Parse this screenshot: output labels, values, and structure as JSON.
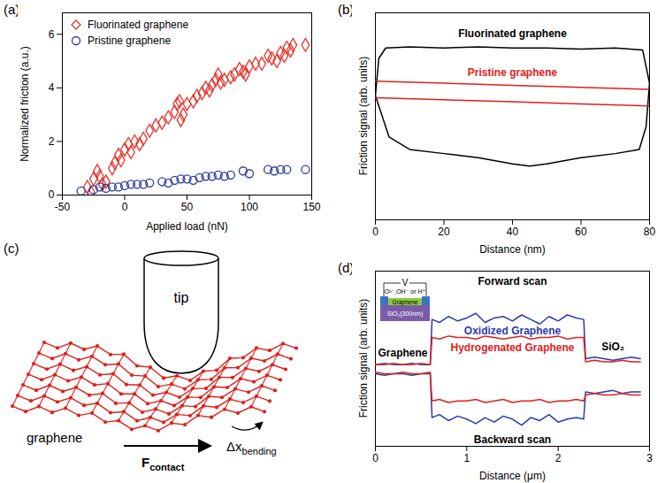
{
  "chart_data": [
    {
      "panel": "(a)",
      "type": "scatter",
      "x_label": "Applied load (nN)",
      "y_label": "Normalized friction (a.u.)",
      "xlim": [
        -50,
        150
      ],
      "xticks": [
        -50,
        0,
        50,
        100,
        150
      ],
      "ylim": [
        0,
        6.8
      ],
      "yticks": [
        0,
        2,
        4,
        6
      ],
      "legend": "top-left",
      "series": [
        {
          "name": "Fluorinated graphene",
          "color": "#e8332a",
          "marker": "diamond",
          "x": [
            -30,
            -27,
            -25,
            -22,
            -20,
            -18,
            -15,
            -10,
            -8,
            -5,
            -3,
            0,
            3,
            5,
            8,
            12,
            15,
            20,
            25,
            30,
            35,
            40,
            42,
            44,
            45,
            47,
            50,
            55,
            58,
            62,
            65,
            68,
            70,
            73,
            75,
            77,
            80,
            85,
            88,
            92,
            95,
            97,
            100,
            105,
            110,
            115,
            118,
            122,
            125,
            128,
            130,
            133,
            135,
            145
          ],
          "values": [
            0.3,
            0.1,
            0.6,
            0.9,
            0.7,
            0.4,
            0.5,
            1.0,
            1.2,
            1.5,
            1.3,
            1.7,
            1.9,
            1.6,
            2.0,
            1.9,
            2.1,
            2.4,
            2.6,
            2.7,
            2.9,
            3.1,
            3.4,
            3.5,
            2.8,
            3.0,
            3.4,
            3.5,
            3.7,
            3.8,
            4.0,
            3.9,
            4.1,
            4.3,
            4.5,
            4.2,
            4.3,
            4.4,
            4.5,
            4.7,
            4.6,
            4.5,
            4.8,
            4.9,
            4.9,
            5.2,
            5.1,
            5.0,
            5.3,
            5.2,
            5.5,
            5.4,
            5.6,
            5.6
          ]
        },
        {
          "name": "Pristine graphene",
          "color": "#2b3a9e",
          "marker": "circle",
          "x": [
            -35,
            -25,
            -20,
            -15,
            -10,
            -5,
            0,
            5,
            10,
            15,
            20,
            30,
            35,
            40,
            45,
            50,
            55,
            60,
            65,
            70,
            75,
            80,
            85,
            95,
            100,
            115,
            120,
            125,
            130,
            145
          ],
          "values": [
            0.15,
            0.2,
            0.3,
            0.25,
            0.3,
            0.3,
            0.35,
            0.4,
            0.4,
            0.4,
            0.45,
            0.5,
            0.45,
            0.55,
            0.6,
            0.6,
            0.55,
            0.65,
            0.7,
            0.7,
            0.75,
            0.7,
            0.75,
            0.9,
            0.8,
            0.95,
            0.9,
            0.95,
            0.95,
            0.95
          ]
        }
      ]
    },
    {
      "panel": "(b)",
      "type": "line",
      "x_label": "Distance (nm)",
      "y_label": "Friction signal (arb. units)",
      "xlim": [
        0,
        80
      ],
      "xticks": [
        0,
        20,
        40,
        60,
        80
      ],
      "ylim": [
        0,
        10
      ],
      "tick_labels": "x",
      "series": [
        {
          "name": "Fluorinated graphene",
          "color": "#000000",
          "label_x": 40,
          "label_y": 9.0,
          "forward": {
            "x": [
              0,
              1,
              3,
              10,
              20,
              30,
              40,
              50,
              60,
              70,
              78,
              80
            ],
            "values": [
              6.0,
              7.8,
              8.3,
              8.35,
              8.3,
              8.35,
              8.3,
              8.3,
              8.25,
              8.3,
              8.2,
              6.6
            ]
          },
          "backward": {
            "x": [
              80,
              79,
              77,
              70,
              60,
              50,
              45,
              40,
              30,
              20,
              10,
              4,
              2,
              0
            ],
            "values": [
              6.6,
              4.5,
              3.4,
              3.2,
              3.0,
              2.7,
              2.6,
              2.7,
              3.0,
              3.2,
              3.4,
              4.0,
              5.0,
              6.0
            ]
          }
        },
        {
          "name": "Pristine graphene",
          "color": "#e0201b",
          "label_x": 40,
          "label_y": 7.1,
          "forward": {
            "x": [
              0,
              20,
              40,
              60,
              80
            ],
            "values": [
              6.7,
              6.6,
              6.5,
              6.4,
              6.3
            ]
          },
          "backward": {
            "x": [
              80,
              60,
              40,
              20,
              0
            ],
            "values": [
              5.5,
              5.6,
              5.7,
              5.8,
              5.9
            ]
          }
        }
      ]
    },
    {
      "panel": "(d)",
      "type": "line",
      "x_label": "Distance (μm)",
      "y_label": "Friction signal (arb. units)",
      "xlim": [
        0,
        3
      ],
      "xticks": [
        0,
        1,
        2,
        3
      ],
      "ylim": [
        -0.6,
        11
      ],
      "tick_labels": "x",
      "x": [
        0,
        0.1,
        0.2,
        0.3,
        0.4,
        0.5,
        0.6,
        0.62,
        0.7,
        0.8,
        0.9,
        1.0,
        1.1,
        1.2,
        1.3,
        1.4,
        1.5,
        1.6,
        1.7,
        1.8,
        1.9,
        2.0,
        2.1,
        2.2,
        2.28,
        2.3,
        2.4,
        2.5,
        2.6,
        2.7,
        2.8,
        2.9
      ],
      "series": [
        {
          "name": "Oxidized Graphene",
          "color": "#2a3bb0",
          "label_x": 1.5,
          "label_y": 7.05,
          "forward": [
            4.8,
            4.9,
            4.8,
            4.8,
            4.9,
            4.8,
            4.8,
            7.8,
            7.6,
            8.0,
            7.7,
            7.9,
            8.2,
            7.6,
            7.9,
            8.0,
            7.7,
            8.1,
            7.8,
            7.5,
            8.0,
            7.7,
            8.1,
            7.9,
            7.8,
            5.2,
            5.3,
            5.2,
            5.1,
            5.2,
            5.3,
            5.2
          ],
          "backward": [
            4.2,
            4.1,
            4.2,
            4.2,
            4.1,
            4.2,
            4.2,
            1.3,
            1.5,
            1.1,
            1.4,
            1.2,
            0.9,
            1.3,
            1.0,
            1.4,
            1.2,
            0.8,
            1.3,
            1.1,
            1.5,
            1.0,
            1.2,
            1.3,
            1.2,
            3.0,
            2.9,
            3.0,
            3.1,
            2.9,
            3.0,
            3.0
          ]
        },
        {
          "name": "Hydrogenated Graphene",
          "color": "#e0201b",
          "label_x": 1.5,
          "label_y": 5.9,
          "forward": [
            4.8,
            4.8,
            4.9,
            4.8,
            4.8,
            4.9,
            4.8,
            6.6,
            6.5,
            6.7,
            6.6,
            6.6,
            6.5,
            6.7,
            6.6,
            6.5,
            6.6,
            6.7,
            6.5,
            6.6,
            6.6,
            6.7,
            6.5,
            6.6,
            6.6,
            5.0,
            5.1,
            5.0,
            5.0,
            5.1,
            5.0,
            5.0
          ],
          "backward": [
            4.3,
            4.2,
            4.2,
            4.3,
            4.2,
            4.2,
            4.3,
            2.4,
            2.5,
            2.3,
            2.4,
            2.4,
            2.5,
            2.3,
            2.4,
            2.5,
            2.3,
            2.4,
            2.4,
            2.5,
            2.3,
            2.4,
            2.4,
            2.5,
            2.4,
            2.8,
            2.9,
            2.8,
            2.8,
            2.9,
            2.8,
            2.8
          ]
        }
      ],
      "annotations": [
        {
          "text": "Forward scan",
          "x": 1.5,
          "y": 10.3,
          "color": "#000000"
        },
        {
          "text": "Backward scan",
          "x": 1.5,
          "y": -0.15,
          "color": "#000000"
        },
        {
          "text": "Graphene",
          "x": 0.3,
          "y": 5.6,
          "color": "#000000"
        },
        {
          "text": "SiO₂",
          "x": 2.6,
          "y": 6.0,
          "color": "#000000"
        }
      ],
      "inset": {
        "source": "V",
        "ions": "O²⁻,OH⁻ or H⁺",
        "layer": "Graphene",
        "substrate": "SiO₂(300nm)"
      }
    }
  ],
  "diagram": {
    "panel": "(c)",
    "tip": "tip",
    "sheet": "graphene",
    "force": "F",
    "force_sub": "contact",
    "bending": "Δx",
    "bending_sub": "bending"
  }
}
